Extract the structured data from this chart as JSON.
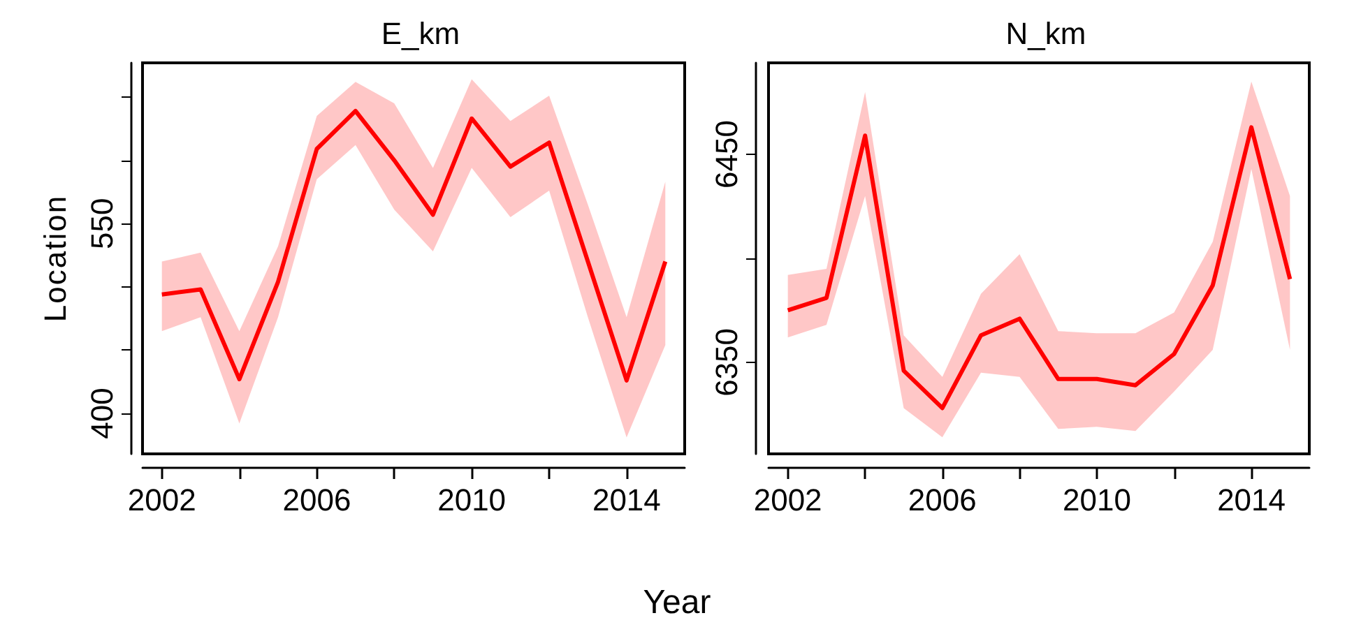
{
  "chart_data": [
    {
      "type": "line",
      "title": "E_km",
      "xlabel": "Year",
      "ylabel": "Location",
      "x": [
        2002,
        2003,
        2004,
        2005,
        2006,
        2007,
        2008,
        2009,
        2010,
        2011,
        2012,
        2013,
        2014,
        2015
      ],
      "series": [
        {
          "color": "#ff0000",
          "values": [
            494,
            498,
            427,
            504,
            609,
            639,
            600,
            557,
            633,
            595,
            614,
            520,
            426,
            520
          ],
          "lower": [
            465,
            476,
            392,
            476,
            585,
            612,
            561,
            528,
            594,
            555,
            576,
            476,
            381,
            454
          ],
          "upper": [
            520,
            527,
            465,
            532,
            635,
            662,
            645,
            594,
            664,
            631,
            651,
            565,
            476,
            583
          ]
        }
      ],
      "xlim": [
        2001.5,
        2015.5
      ],
      "ylim": [
        368,
        677
      ],
      "xticks": [
        2002,
        {
          "value": 2004,
          "label": null
        },
        2006,
        {
          "value": 2008,
          "label": null
        },
        2010,
        {
          "value": 2012,
          "label": null
        },
        2014
      ],
      "yticks": [
        400,
        {
          "value": 450,
          "label": null
        },
        {
          "value": 500,
          "label": null
        },
        550,
        {
          "value": 600,
          "label": null
        },
        {
          "value": 650,
          "label": null
        }
      ],
      "grid": false,
      "marker": "none",
      "line_style": "solid"
    },
    {
      "type": "line",
      "title": "N_km",
      "x": [
        2002,
        2003,
        2004,
        2005,
        2006,
        2007,
        2008,
        2009,
        2010,
        2011,
        2012,
        2013,
        2014,
        2015
      ],
      "series": [
        {
          "color": "#ff0000",
          "values": [
            6375,
            6381,
            6459,
            6346,
            6328,
            6363,
            6371,
            6342,
            6342,
            6339,
            6354,
            6387,
            6463,
            6390
          ],
          "lower": [
            6362,
            6368,
            6430,
            6328,
            6314,
            6345,
            6343,
            6318,
            6319,
            6317,
            6336,
            6356,
            6443,
            6356
          ],
          "upper": [
            6392,
            6395,
            6480,
            6363,
            6343,
            6383,
            6402,
            6365,
            6364,
            6364,
            6374,
            6408,
            6485,
            6430
          ]
        }
      ],
      "xlim": [
        2001.5,
        2015.5
      ],
      "ylim": [
        6306,
        6494
      ],
      "xticks": [
        2002,
        {
          "value": 2004,
          "label": null
        },
        2006,
        {
          "value": 2008,
          "label": null
        },
        2010,
        {
          "value": 2012,
          "label": null
        },
        2014
      ],
      "yticks": [
        6350,
        {
          "value": 6400,
          "label": null
        },
        6450
      ],
      "grid": false,
      "marker": "none",
      "line_style": "solid"
    }
  ]
}
